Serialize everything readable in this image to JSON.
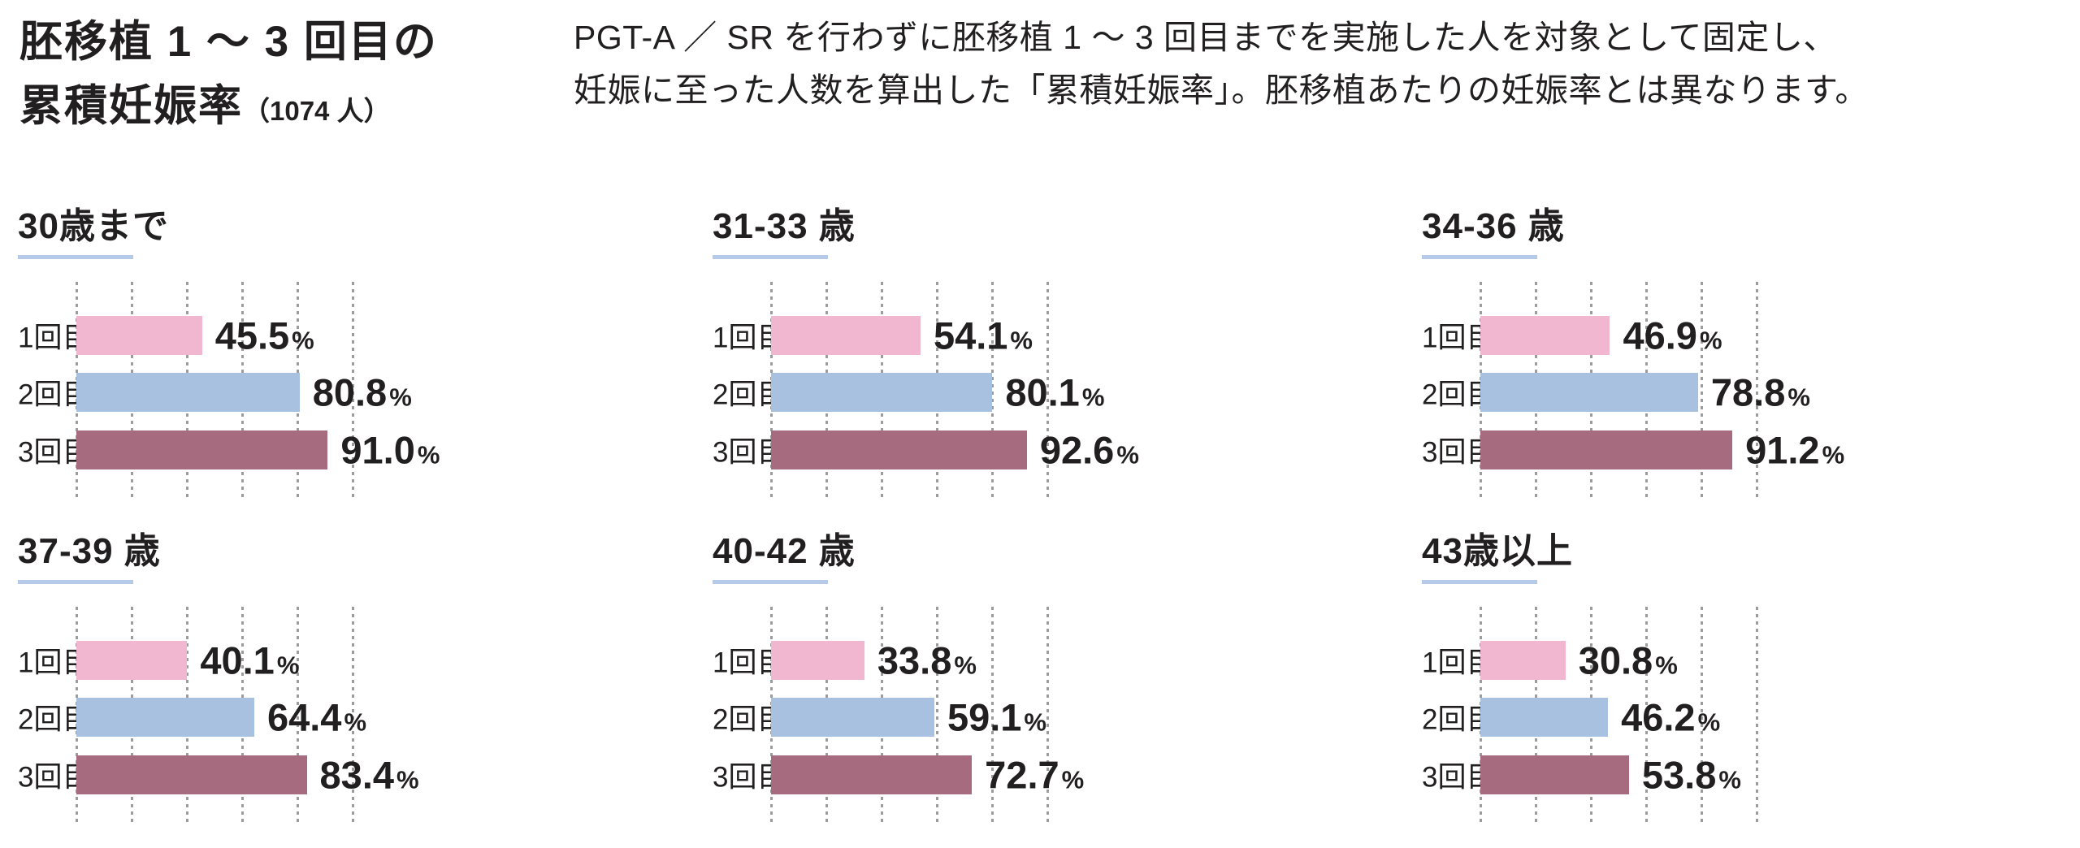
{
  "header": {
    "title_line1": "胚移植 1 ～ 3 回目の",
    "title_line2": "累積妊娠率",
    "title_suffix": "（1074 人）",
    "description_line1": "PGT-A ／ SR を行わずに胚移植 1 ～ 3 回目までを実施した人を対象として固定し、",
    "description_line2": "妊娠に至った人数を算出した「累積妊娠率」。胚移植あたりの妊娠率とは異なります。"
  },
  "colors": {
    "bar_attempt1": "#F1B6D0",
    "bar_attempt2": "#A9C1E1",
    "bar_attempt3": "#A66B7E",
    "title_underline": "#B5CAE9",
    "gridline": "#9C9C9C",
    "text": "#211F1F"
  },
  "chart_data": {
    "type": "bar",
    "orientation": "horizontal",
    "title": "胚移植 1 ～ 3 回目の累積妊娠率（1074 人）",
    "subtitle": "PGT-A ／ SR を行わずに胚移植 1 ～ 3 回目までを実施した人を対象として固定し、妊娠に至った人数を算出した「累積妊娠率」。胚移植あたりの妊娠率とは異なります。",
    "categories": [
      "1回目",
      "2回目",
      "3回目"
    ],
    "unit": "%",
    "xlim": [
      0,
      100
    ],
    "gridline_step": 20,
    "grid": "dotted-vertical",
    "legend": "none",
    "series_colors": [
      "#F1B6D0",
      "#A9C1E1",
      "#A66B7E"
    ],
    "panels": [
      {
        "label": "30歳まで",
        "values": [
          "45.5",
          "80.8",
          "91.0"
        ]
      },
      {
        "label": "31-33 歳",
        "values": [
          "54.1",
          "80.1",
          "92.6"
        ]
      },
      {
        "label": "34-36 歳",
        "values": [
          "46.9",
          "78.8",
          "91.2"
        ]
      },
      {
        "label": "37-39 歳",
        "values": [
          "40.1",
          "64.4",
          "83.4"
        ]
      },
      {
        "label": "40-42 歳",
        "values": [
          "33.8",
          "59.1",
          "72.7"
        ]
      },
      {
        "label": "43歳以上",
        "values": [
          "30.8",
          "46.2",
          "53.8"
        ]
      }
    ]
  }
}
